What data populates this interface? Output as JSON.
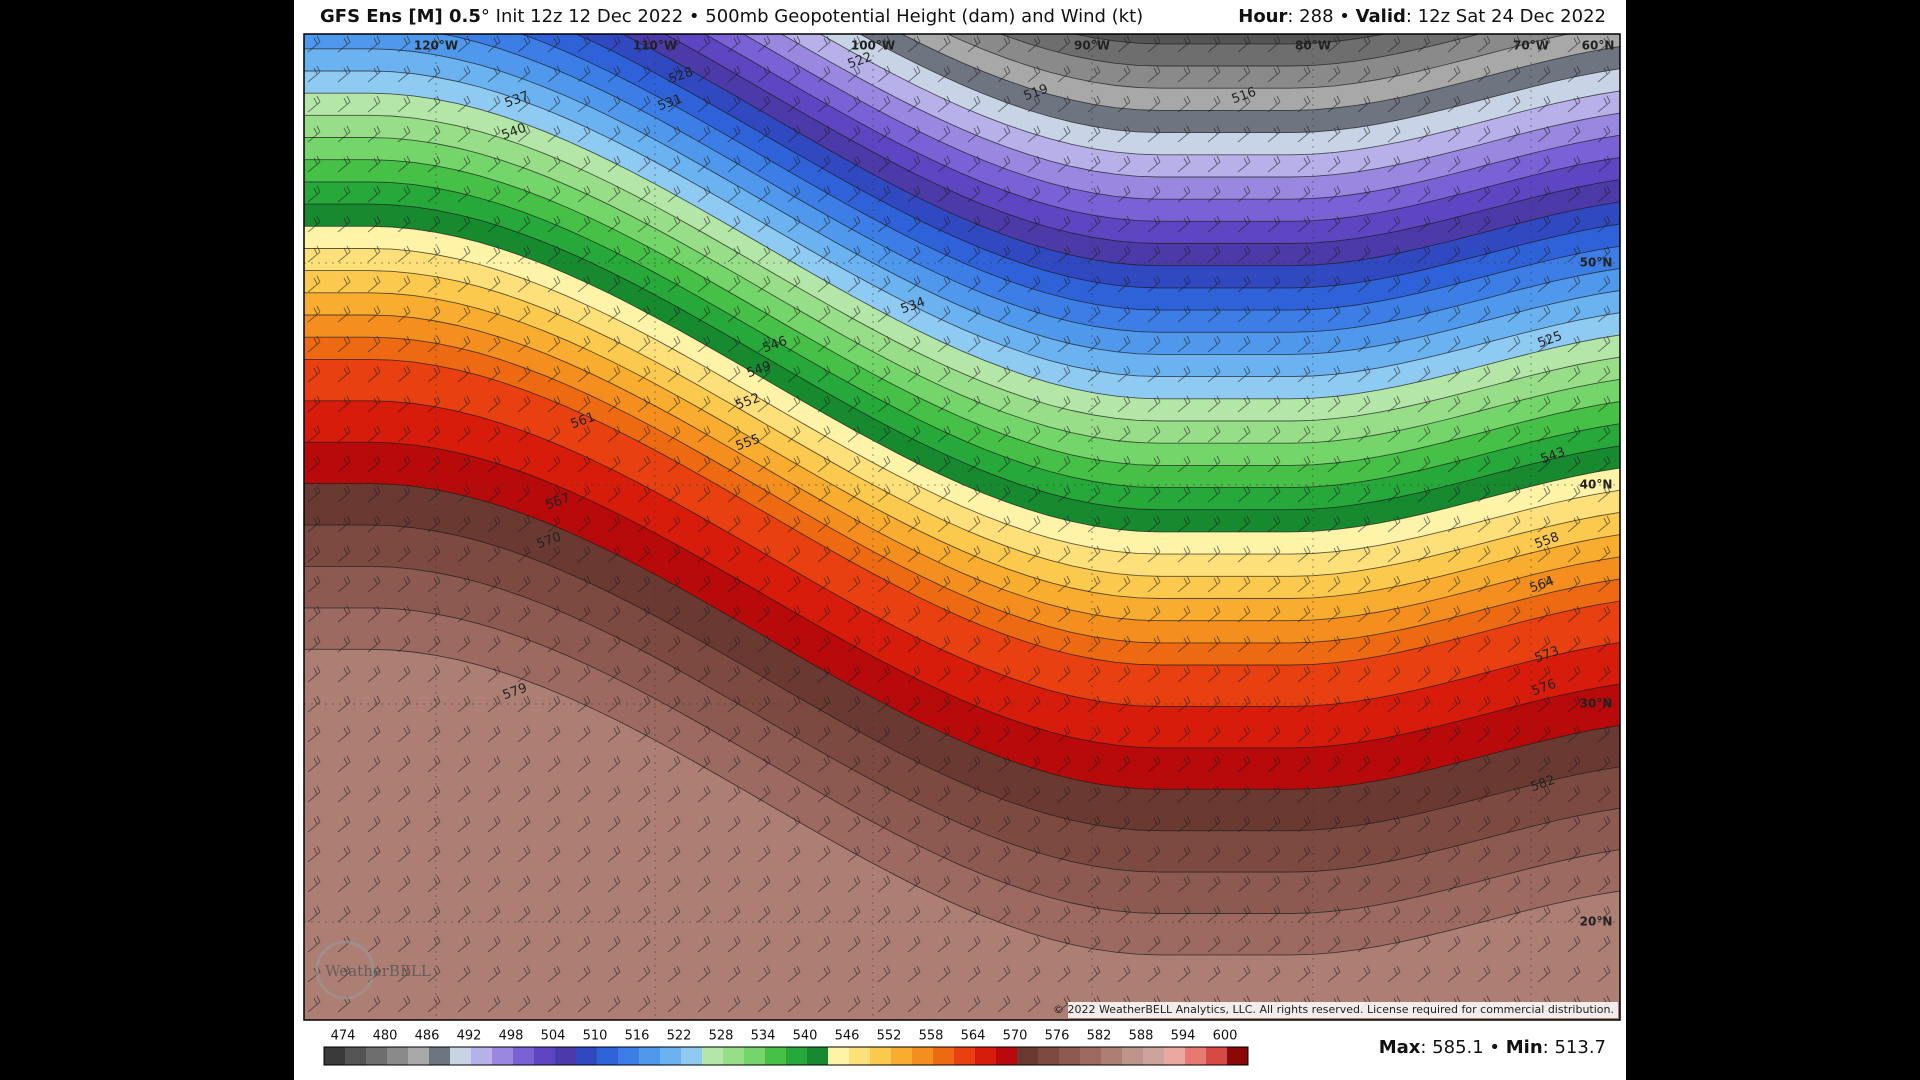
{
  "header": {
    "left": [
      {
        "text": "GFS Ens [M] 0.5",
        "bold": true
      },
      {
        "text": "° Init 12z 12 Dec 2022 • 500mb Geopotential Height (dam) and Wind (kt)",
        "bold": false
      }
    ],
    "right": [
      {
        "text": "Hour",
        "bold": true
      },
      {
        "text": ": 288 • ",
        "bold": false
      },
      {
        "text": "Valid",
        "bold": true
      },
      {
        "text": ": 12z Sat 24 Dec 2022",
        "bold": false
      }
    ]
  },
  "map": {
    "longitude_labels": [
      "120°W",
      "110°W",
      "100°W",
      "90°W",
      "80°W",
      "70°W"
    ],
    "latitude_labels": [
      "60°N",
      "50°N",
      "40°N",
      "30°N",
      "20°N"
    ],
    "contour_labels": [
      528,
      531,
      537,
      540,
      522,
      519,
      516,
      534,
      546,
      549,
      552,
      555,
      561,
      567,
      570,
      579,
      525,
      543,
      558,
      564,
      573,
      576,
      582
    ],
    "copyright": "© 2022 WeatherBELL Analytics, LLC. All rights reserved. License required for commercial distribution.",
    "logo": "WeatherBELL"
  },
  "colorbar": {
    "labels": [
      474,
      480,
      486,
      492,
      498,
      504,
      510,
      516,
      522,
      528,
      534,
      540,
      546,
      552,
      558,
      564,
      570,
      576,
      582,
      588,
      594,
      600
    ],
    "colors": [
      "#3a3a3a",
      "#555555",
      "#6e6e6e",
      "#8a8a8a",
      "#a8a8a8",
      "#6f7580",
      "#c9d3e6",
      "#b8b0e8",
      "#9a88e0",
      "#7a62d6",
      "#5e46c2",
      "#4b3aa8",
      "#3048c0",
      "#2f62d8",
      "#3c7ee6",
      "#4f98ec",
      "#6ab2f0",
      "#8fcaf2",
      "#b4e6a8",
      "#98de88",
      "#74d66a",
      "#46c046",
      "#26a83a",
      "#178a30",
      "#fff3a8",
      "#fde07a",
      "#fbc94e",
      "#f8ad30",
      "#f48e1e",
      "#ee6a12",
      "#e84010",
      "#d81c0c",
      "#b80a0a",
      "#6a3a32",
      "#7c4a40",
      "#8c5a50",
      "#9c6a60",
      "#ad7e74",
      "#bd948a",
      "#cca49c",
      "#e8a8a0",
      "#e67a70",
      "#d44a44",
      "#8a0808"
    ]
  },
  "footer": [
    {
      "text": "Max",
      "bold": true
    },
    {
      "text": ": 585.1 • ",
      "bold": false
    },
    {
      "text": "Min",
      "bold": true
    },
    {
      "text": ": 513.7",
      "bold": false
    }
  ]
}
